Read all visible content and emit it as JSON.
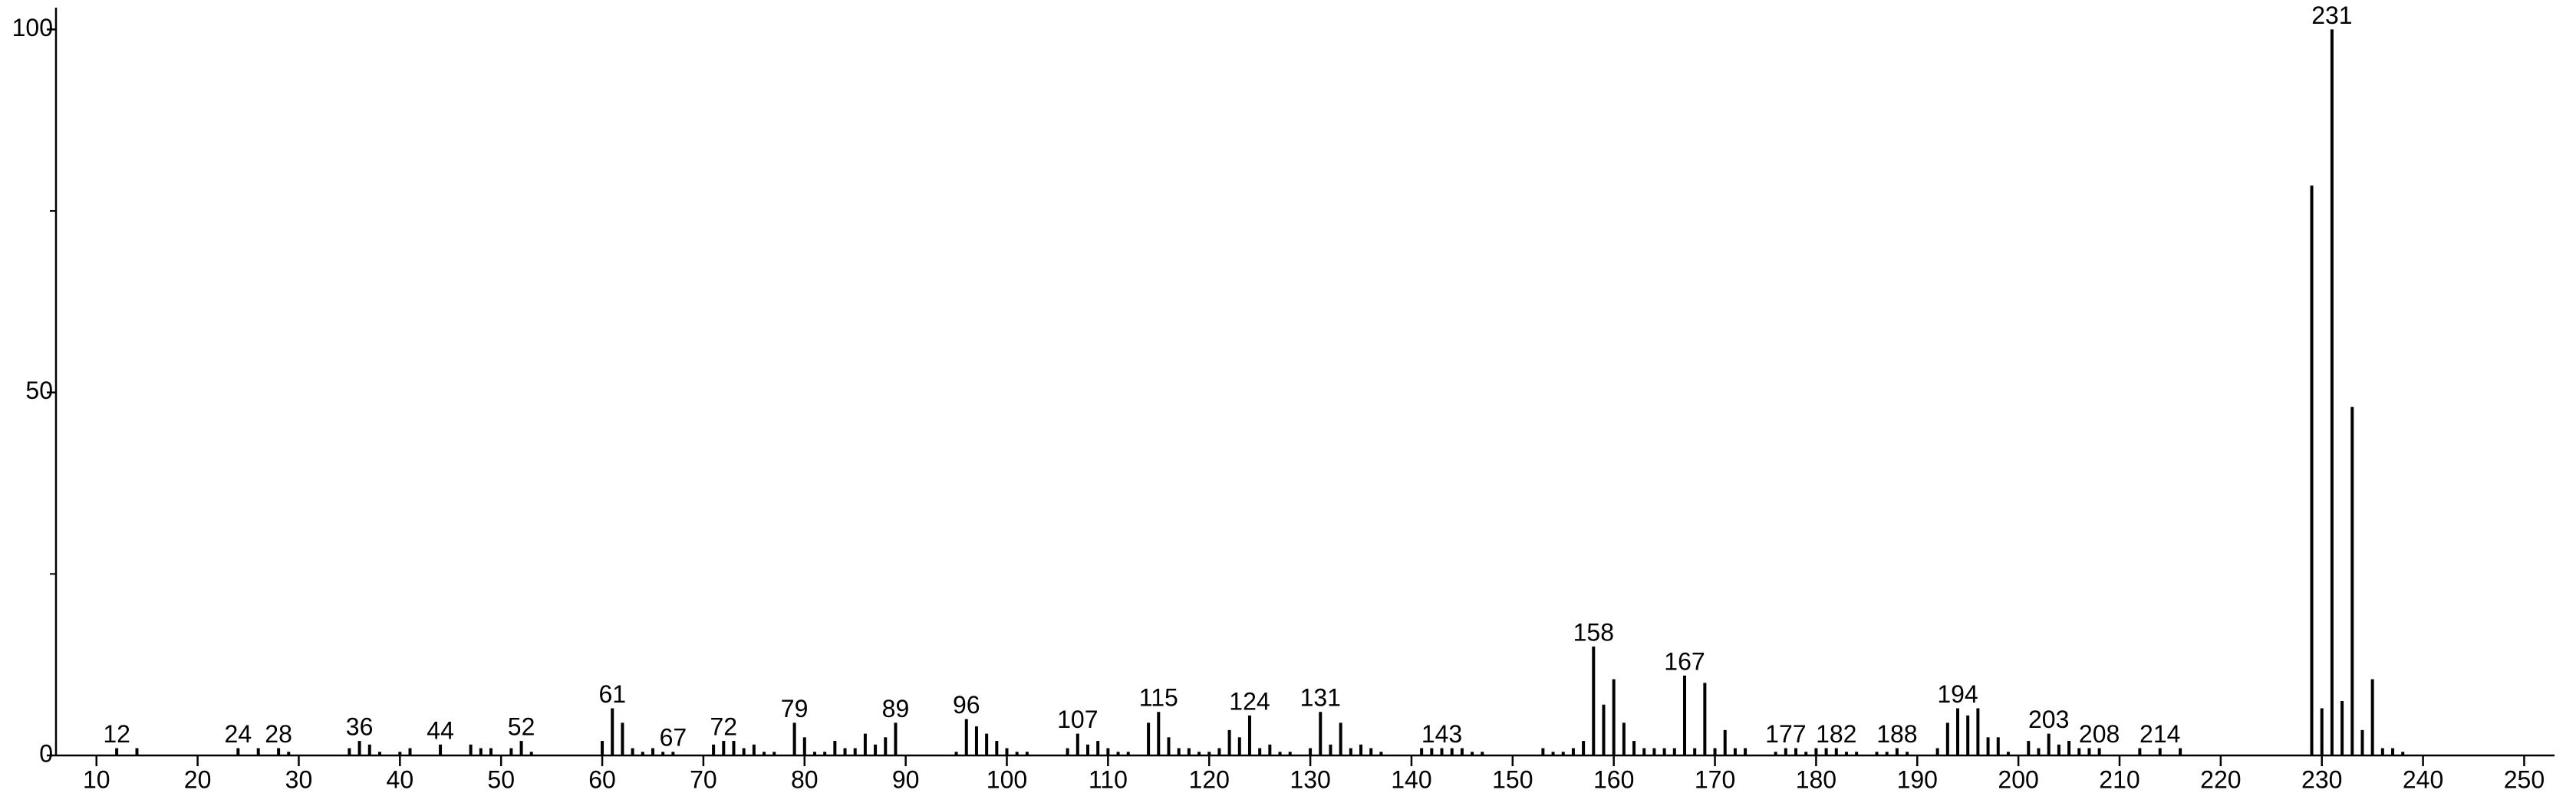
{
  "chart_data": {
    "type": "stick",
    "x": [
      12,
      14,
      24,
      26,
      28,
      29,
      35,
      36,
      37,
      38,
      40,
      41,
      44,
      47,
      48,
      49,
      51,
      52,
      53,
      60,
      61,
      62,
      63,
      64,
      65,
      66,
      67,
      71,
      72,
      73,
      74,
      75,
      76,
      77,
      79,
      80,
      81,
      82,
      83,
      84,
      85,
      86,
      87,
      88,
      89,
      95,
      96,
      97,
      98,
      99,
      100,
      101,
      102,
      106,
      107,
      108,
      109,
      110,
      111,
      112,
      114,
      115,
      116,
      117,
      118,
      119,
      120,
      121,
      122,
      123,
      124,
      125,
      126,
      127,
      128,
      130,
      131,
      132,
      133,
      134,
      135,
      136,
      137,
      141,
      142,
      143,
      144,
      145,
      146,
      147,
      153,
      154,
      155,
      156,
      157,
      158,
      159,
      160,
      161,
      162,
      163,
      164,
      165,
      166,
      167,
      168,
      169,
      170,
      171,
      172,
      173,
      176,
      177,
      178,
      179,
      180,
      181,
      182,
      183,
      184,
      186,
      187,
      188,
      189,
      192,
      193,
      194,
      195,
      196,
      197,
      198,
      199,
      201,
      202,
      203,
      204,
      205,
      206,
      207,
      208,
      212,
      214,
      216,
      229,
      230,
      231,
      232,
      233,
      234,
      235,
      236,
      237,
      238
    ],
    "values": [
      1,
      1,
      1,
      1,
      1,
      0.5,
      1,
      2,
      1.5,
      0.5,
      0.5,
      1,
      1.5,
      1.5,
      1,
      1,
      1,
      2,
      0.5,
      2,
      6.5,
      4.5,
      1,
      0.5,
      1,
      0.5,
      0.5,
      1.5,
      2,
      2,
      1,
      1.5,
      0.5,
      0.5,
      4.5,
      2.5,
      0.5,
      0.5,
      2,
      1,
      1,
      3,
      1.5,
      2.5,
      4.5,
      0.5,
      5,
      4,
      3,
      2,
      1,
      0.5,
      0.5,
      1,
      3,
      1.5,
      2,
      1,
      0.5,
      0.5,
      4.5,
      6,
      2.5,
      1,
      1,
      0.5,
      0.5,
      1,
      3.5,
      2.5,
      5.5,
      1,
      1.5,
      0.5,
      0.5,
      1,
      6,
      1.5,
      4.5,
      1,
      1.5,
      1,
      0.5,
      1,
      1,
      1,
      1,
      1,
      0.5,
      0.5,
      1,
      0.5,
      0.5,
      1,
      2,
      15,
      7,
      10.5,
      4.5,
      2,
      1,
      1,
      1,
      1,
      11,
      1,
      10,
      1,
      3.5,
      1,
      1,
      0.5,
      1,
      1,
      0.5,
      1,
      1,
      1,
      0.5,
      0.5,
      0.5,
      0.5,
      1,
      0.5,
      1,
      4.5,
      6.5,
      5.5,
      6.5,
      2.5,
      2.5,
      0.5,
      2,
      1,
      3,
      1.5,
      2,
      1,
      1,
      1,
      1,
      1,
      1,
      78.5,
      6.5,
      100,
      7.5,
      48,
      3.5,
      10.5,
      1,
      1,
      0.5
    ],
    "color": "#000000",
    "labeled_peaks": [
      12,
      24,
      28,
      36,
      44,
      52,
      61,
      67,
      72,
      79,
      89,
      96,
      107,
      115,
      124,
      131,
      143,
      158,
      167,
      177,
      182,
      188,
      194,
      203,
      208,
      214,
      231
    ],
    "xlim": [
      6,
      253
    ],
    "xticks": [
      10,
      20,
      30,
      40,
      50,
      60,
      70,
      80,
      90,
      100,
      110,
      120,
      130,
      140,
      150,
      160,
      170,
      180,
      190,
      200,
      210,
      220,
      230,
      240,
      250
    ],
    "ylim": [
      0,
      103
    ],
    "yticks": [
      0,
      50,
      100
    ],
    "yminorticks": [
      25,
      75
    ]
  }
}
